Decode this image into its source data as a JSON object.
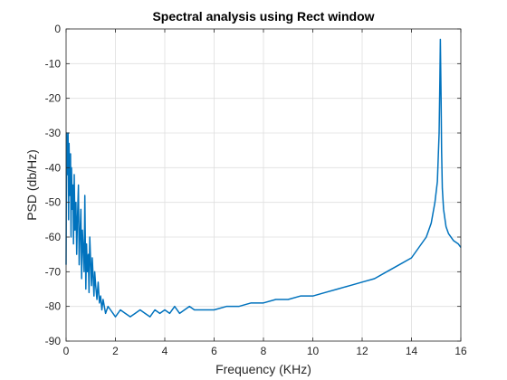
{
  "chart_data": {
    "type": "line",
    "title": "Spectral analysis using Rect window",
    "xlabel": "Frequency (KHz)",
    "ylabel": "PSD (db/Hz)",
    "xlim": [
      0,
      16
    ],
    "ylim": [
      -90,
      0
    ],
    "xticks": [
      0,
      2,
      4,
      6,
      8,
      10,
      12,
      14,
      16
    ],
    "yticks": [
      0,
      -10,
      -20,
      -30,
      -40,
      -50,
      -60,
      -70,
      -80,
      -90
    ],
    "xtick_labels": [
      "0",
      "2",
      "4",
      "6",
      "8",
      "10",
      "12",
      "14",
      "16"
    ],
    "ytick_labels": [
      "0",
      "-10",
      "-20",
      "-30",
      "-40",
      "-50",
      "-60",
      "-70",
      "-80",
      "-90"
    ],
    "grid": true,
    "line_color": "#0072BD",
    "series": [
      {
        "x": [
          0,
          0.02,
          0.05,
          0.08,
          0.1,
          0.12,
          0.15,
          0.18,
          0.2,
          0.22,
          0.25,
          0.28,
          0.3,
          0.33,
          0.36,
          0.4,
          0.43,
          0.46,
          0.5,
          0.53,
          0.56,
          0.6,
          0.63,
          0.66,
          0.7,
          0.73,
          0.76,
          0.8,
          0.83,
          0.86,
          0.9,
          0.93,
          0.96,
          1.0,
          1.03,
          1.06,
          1.1,
          1.13,
          1.16,
          1.2,
          1.25,
          1.3,
          1.35,
          1.4,
          1.45,
          1.5,
          1.6,
          1.7,
          1.8,
          1.9,
          2.0,
          2.2,
          2.4,
          2.6,
          2.8,
          3.0,
          3.2,
          3.4,
          3.6,
          3.8,
          4.0,
          4.2,
          4.4,
          4.6,
          4.8,
          5.0,
          5.2,
          5.5,
          6.0,
          6.5,
          7.0,
          7.5,
          8.0,
          8.5,
          9.0,
          9.5,
          10.0,
          10.5,
          11.0,
          11.5,
          12.0,
          12.5,
          13.0,
          13.5,
          14.0,
          14.3,
          14.6,
          14.8,
          14.95,
          15.05,
          15.12,
          15.15,
          15.17,
          15.2,
          15.22,
          15.25,
          15.3,
          15.4,
          15.5,
          15.7,
          15.9,
          16.0
        ],
        "y": [
          -68,
          -30,
          -42,
          -30,
          -55,
          -33,
          -48,
          -36,
          -60,
          -40,
          -52,
          -45,
          -62,
          -42,
          -58,
          -50,
          -65,
          -55,
          -45,
          -68,
          -60,
          -52,
          -72,
          -58,
          -64,
          -70,
          -48,
          -75,
          -62,
          -70,
          -65,
          -76,
          -60,
          -68,
          -74,
          -66,
          -72,
          -77,
          -70,
          -74,
          -78,
          -73,
          -79,
          -77,
          -81,
          -78,
          -82,
          -80,
          -81,
          -82,
          -83,
          -81,
          -82,
          -83,
          -82,
          -81,
          -82,
          -83,
          -81,
          -82,
          -81,
          -82,
          -80,
          -82,
          -81,
          -80,
          -81,
          -81,
          -81,
          -80,
          -80,
          -79,
          -79,
          -78,
          -78,
          -77,
          -77,
          -76,
          -75,
          -74,
          -73,
          -72,
          -70,
          -68,
          -66,
          -63,
          -60,
          -56,
          -50,
          -44,
          -30,
          -15,
          -3,
          -20,
          -35,
          -46,
          -52,
          -57,
          -59,
          -61,
          -62,
          -63
        ]
      }
    ]
  }
}
